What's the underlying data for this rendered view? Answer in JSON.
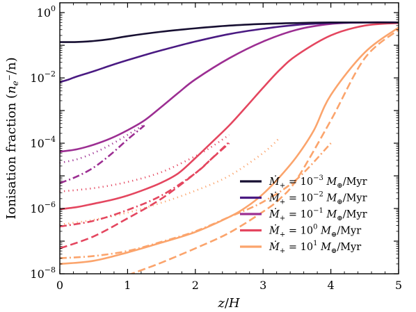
{
  "chart_data": {
    "type": "line",
    "xlabel": "z/H",
    "ylabel": "Ionisation fraction (n_e⁻/n)",
    "xlim": [
      0,
      5
    ],
    "ylim": [
      1e-08,
      2.0
    ],
    "y_scale": "log",
    "grid": false,
    "legend_position": "lower-right",
    "x_ticks": [
      "0",
      "1",
      "2",
      "3",
      "4",
      "5"
    ],
    "y_ticks": [
      {
        "base": "10",
        "exp": "0",
        "value": 1
      },
      {
        "base": "10",
        "exp": "−2",
        "value": 0.01
      },
      {
        "base": "10",
        "exp": "−4",
        "value": 0.0001
      },
      {
        "base": "10",
        "exp": "−6",
        "value": 1e-06
      },
      {
        "base": "10",
        "exp": "−8",
        "value": 1e-08
      }
    ],
    "line_styles": [
      "solid",
      "dotted",
      "dashdot",
      "dashed"
    ],
    "series": [
      {
        "name": "Ṁ₊ = 10⁻³ M⊕/Myr",
        "legend_exp": "−3",
        "color": "#170f32",
        "lines": [
          {
            "style": "solid",
            "x": [
              0,
              0.25,
              0.5,
              0.75,
              1.0,
              1.5,
              2.0,
              2.5,
              3.0,
              3.5,
              4.0,
              4.5,
              5.0
            ],
            "y": [
              0.125,
              0.126,
              0.135,
              0.155,
              0.19,
              0.26,
              0.33,
              0.4,
              0.45,
              0.48,
              0.5,
              0.5,
              0.5
            ]
          }
        ]
      },
      {
        "name": "Ṁ₊ = 10⁻² M⊕/Myr",
        "legend_exp": "−2",
        "color": "#4a1a82",
        "lines": [
          {
            "style": "solid",
            "x": [
              0,
              0.1,
              0.25,
              0.5,
              0.75,
              1.0,
              1.25,
              1.5,
              2.0,
              2.5,
              3.0,
              3.5,
              4.0,
              4.5,
              5.0
            ],
            "y": [
              0.0075,
              0.0085,
              0.011,
              0.016,
              0.024,
              0.035,
              0.05,
              0.07,
              0.13,
              0.22,
              0.32,
              0.42,
              0.48,
              0.5,
              0.5
            ]
          }
        ]
      },
      {
        "name": "Ṁ₊ = 10⁻¹ M⊕/Myr",
        "legend_exp": "−1",
        "color": "#9c2e92",
        "lines": [
          {
            "style": "solid",
            "x": [
              0,
              0.25,
              0.5,
              0.75,
              1.0,
              1.25,
              1.5,
              1.75,
              2.0,
              2.5,
              3.0,
              3.5,
              4.0,
              4.5,
              5.0
            ],
            "y": [
              5.5e-05,
              6.5e-05,
              9e-05,
              0.00014,
              0.00025,
              0.0005,
              0.0013,
              0.0035,
              0.009,
              0.04,
              0.13,
              0.3,
              0.45,
              0.5,
              0.5
            ]
          },
          {
            "style": "dotted",
            "x": [
              0,
              0.25,
              0.5,
              0.75,
              1.0,
              1.25
            ],
            "y": [
              2.5e-05,
              3.2e-05,
              5e-05,
              9e-05,
              0.00018,
              0.00038
            ]
          },
          {
            "style": "dashdot",
            "x": [
              0,
              0.25,
              0.5,
              0.75,
              1.0,
              1.25
            ],
            "y": [
              6e-06,
              9.5e-06,
              1.8e-05,
              4.5e-05,
              0.00013,
              0.00035
            ]
          }
        ]
      },
      {
        "name": "Ṁ₊ = 10⁰ M⊕/Myr",
        "legend_exp": "0",
        "color": "#e4465f",
        "lines": [
          {
            "style": "solid",
            "x": [
              0,
              0.25,
              0.5,
              0.75,
              1.0,
              1.25,
              1.5,
              1.75,
              2.0,
              2.25,
              2.5,
              2.75,
              3.0,
              3.25,
              3.5,
              4.0,
              4.5,
              5.0
            ],
            "y": [
              9.5e-07,
              1.1e-06,
              1.4e-06,
              1.8e-06,
              2.5e-06,
              3.8e-06,
              6.2e-06,
              1.2e-05,
              3.5e-05,
              0.00011,
              0.00035,
              0.0013,
              0.005,
              0.018,
              0.05,
              0.2,
              0.4,
              0.48
            ]
          },
          {
            "style": "dotted",
            "x": [
              0,
              0.5,
              1.0,
              1.5,
              2.0,
              2.25,
              2.5
            ],
            "y": [
              3.3e-06,
              4.2e-06,
              6.5e-06,
              1.3e-05,
              4e-05,
              8e-05,
              0.00018
            ]
          },
          {
            "style": "dashdot",
            "x": [
              0,
              0.5,
              1.0,
              1.5,
              2.0,
              2.25,
              2.5
            ],
            "y": [
              2.8e-07,
              4.2e-07,
              9e-07,
              2.5e-06,
              1.2e-05,
              3.5e-05,
              0.00011
            ]
          },
          {
            "style": "dashed",
            "x": [
              0,
              0.5,
              1.0,
              1.5,
              2.0,
              2.25,
              2.5
            ],
            "y": [
              6e-08,
              1.4e-07,
              5e-07,
              2e-06,
              1.2e-05,
              3.5e-05,
              0.0001
            ]
          }
        ]
      },
      {
        "name": "Ṁ₊ = 10¹ M⊕/Myr",
        "legend_exp": "1",
        "color": "#fba46c",
        "lines": [
          {
            "style": "solid",
            "x": [
              0,
              0.5,
              1.0,
              1.5,
              2.0,
              2.5,
              2.75,
              3.0,
              3.25,
              3.5,
              3.75,
              4.0,
              4.5,
              5.0
            ],
            "y": [
              2e-08,
              2.5e-08,
              4.5e-08,
              9e-08,
              1.9e-07,
              5.5e-07,
              1.1e-06,
              2.8e-06,
              9.5e-06,
              4e-05,
              0.00025,
              0.003,
              0.06,
              0.35
            ]
          },
          {
            "style": "dotted",
            "x": [
              0,
              0.5,
              1.0,
              1.5,
              2.0,
              2.5,
              3.0,
              3.25
            ],
            "y": [
              3.2e-07,
              4.5e-07,
              7.5e-07,
              1.5e-06,
              3.5e-06,
              1e-05,
              5e-05,
              0.00015
            ]
          },
          {
            "style": "dashdot",
            "x": [
              0,
              0.5,
              1.0,
              1.5,
              2.0,
              2.5,
              3.0,
              3.5,
              4.0
            ],
            "y": [
              3e-08,
              3.5e-08,
              5e-08,
              9.5e-08,
              2e-07,
              5.5e-07,
              1.6e-06,
              8e-06,
              0.0001
            ]
          },
          {
            "style": "dashed",
            "x": [
              1.0,
              1.25,
              1.5,
              2.0,
              2.5,
              3.0,
              3.25,
              3.5,
              4.0,
              4.5,
              5.0
            ],
            "y": [
              9e-09,
              1.4e-08,
              2.2e-08,
              6e-08,
              1.8e-07,
              8e-07,
              2e-06,
              8e-06,
              0.0005,
              0.04,
              0.3
            ]
          }
        ]
      }
    ]
  }
}
